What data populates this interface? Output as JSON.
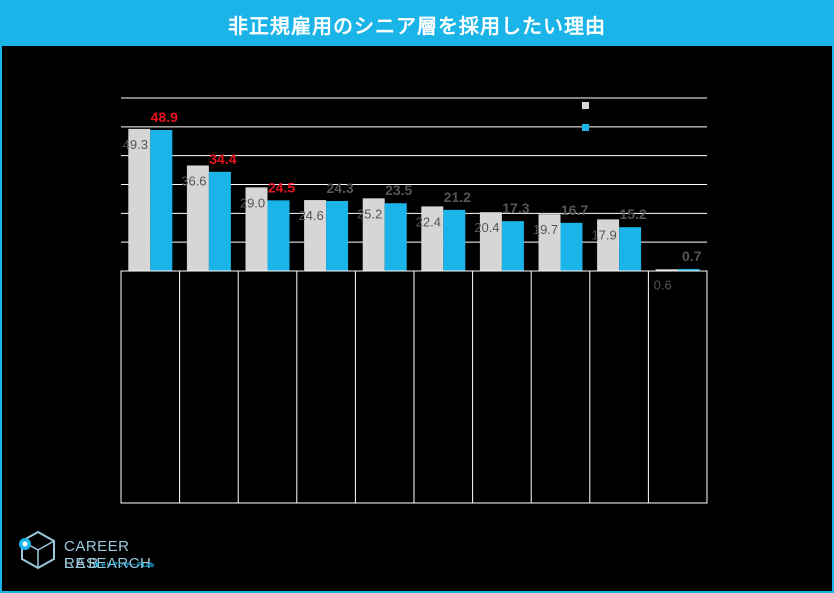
{
  "title": "非正規雇用のシニア層を採用したい理由",
  "logo": {
    "line1": "CAREER RESEARCH",
    "line2": "LAB",
    "tagline": "キャリアリサーチLab"
  },
  "colors": {
    "accent": "#1ab4e8",
    "series_a": "#d6d6d6",
    "series_b": "#1ab4e8",
    "highlight_label": "#e8141e",
    "label": "#555555"
  },
  "chart_data": {
    "type": "bar",
    "categories": [
      "",
      "",
      "",
      "",
      "",
      "",
      "",
      "",
      "",
      ""
    ],
    "series": [
      {
        "values": [
          49.3,
          36.6,
          29.0,
          24.6,
          25.2,
          22.4,
          20.4,
          19.7,
          17.9,
          0.6
        ]
      },
      {
        "values": [
          48.9,
          34.4,
          24.5,
          24.3,
          23.5,
          21.2,
          17.3,
          16.7,
          15.2,
          0.7
        ]
      }
    ],
    "highlighted_b": [
      0,
      1,
      2
    ],
    "ylim": [
      0,
      60
    ],
    "grid": true,
    "legend": "top-right"
  }
}
